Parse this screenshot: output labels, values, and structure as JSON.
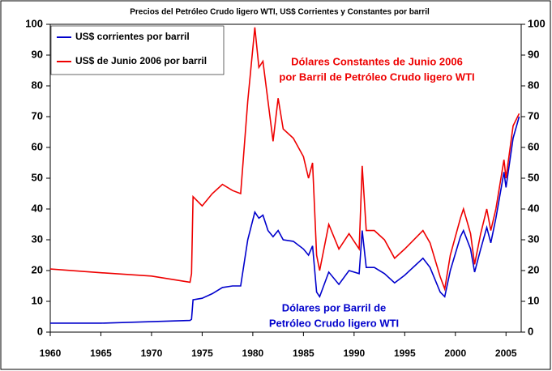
{
  "chart_data": {
    "type": "line",
    "title": "Precios del Petróleo Crudo ligero WTI, US$ Corrientes y Constantes por barril",
    "x": [
      1960,
      1965,
      1970,
      1973.8,
      1973.95,
      1974.1,
      1975,
      1976,
      1977,
      1978,
      1978.8,
      1979.5,
      1980.2,
      1980.6,
      1981,
      1981.5,
      1982,
      1982.5,
      1983,
      1984,
      1985,
      1985.5,
      1985.9,
      1986.3,
      1986.6,
      1987.5,
      1988.5,
      1989.5,
      1990.5,
      1990.8,
      1991.2,
      1992,
      1993,
      1994,
      1995,
      1996.8,
      1997.5,
      1998.5,
      1998.95,
      1999.5,
      2000.5,
      2000.8,
      2001.5,
      2001.9,
      2002.5,
      2003.1,
      2003.5,
      2004,
      2004.8,
      2005,
      2005.7,
      2006.3
    ],
    "series": [
      {
        "name": "US$ corrientes por barril",
        "color": "#0000cc",
        "values": [
          2.9,
          2.9,
          3.4,
          3.8,
          4.2,
          10.5,
          11,
          12.5,
          14.5,
          15,
          15,
          30,
          39,
          37,
          38,
          33,
          31,
          33,
          30,
          29.5,
          27,
          25,
          28,
          13,
          11.5,
          19.5,
          15.5,
          20,
          19,
          33,
          21,
          21,
          19,
          16,
          18.5,
          24,
          21,
          13,
          11.5,
          20,
          31,
          33,
          27,
          19.5,
          27,
          34,
          29,
          37,
          52,
          47,
          63,
          70
        ]
      },
      {
        "name": "US$ de Junio 2006 por barril",
        "color": "#ee0000",
        "values": [
          20.5,
          19.3,
          18.2,
          16.2,
          19,
          44,
          41,
          45,
          48,
          46,
          45,
          75,
          99,
          86,
          88,
          75,
          62,
          76,
          66,
          63,
          57,
          50,
          55,
          25,
          20,
          35,
          27,
          32,
          27,
          54,
          33,
          33,
          30,
          24,
          27,
          33,
          29,
          18,
          14,
          25,
          37,
          40,
          32,
          22,
          32,
          40,
          33,
          40,
          56,
          50,
          67,
          71
        ]
      }
    ],
    "annotations": [
      {
        "text": [
          "Dólares Constantes de  Junio 2006",
          "por Barril de Petróleo Crudo ligero WTI"
        ],
        "color": "#ee0000"
      },
      {
        "text": [
          "Dólares por Barril de",
          "Petróleo Crudo ligero WTI"
        ],
        "color": "#0000cc"
      }
    ],
    "xlim": [
      1960,
      2006.5
    ],
    "xticks": [
      1960,
      1965,
      1970,
      1975,
      1980,
      1985,
      1990,
      1995,
      2000,
      2005
    ],
    "ylim": [
      0,
      100
    ],
    "yticks": [
      0,
      10,
      20,
      30,
      40,
      50,
      60,
      70,
      80,
      90,
      100
    ],
    "y2lim": [
      0,
      100
    ],
    "y2ticks": [
      0,
      10,
      20,
      30,
      40,
      50,
      60,
      70,
      80,
      90,
      100
    ],
    "legend": "upper-left"
  }
}
